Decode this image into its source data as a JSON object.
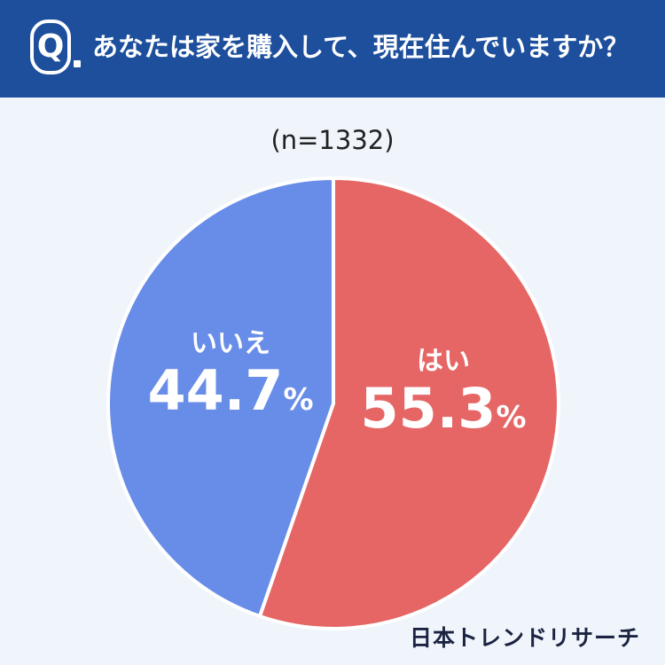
{
  "header": {
    "badge_letter": "Q",
    "question": "あなたは家を購入して、現在住んでいますか？"
  },
  "sample_size": "(n=1332)",
  "brand": "日本トレンドリサーチ",
  "colors": {
    "header": "#1d4f9c",
    "yes": "#e66666",
    "no": "#688de8",
    "background": "#f0f5fc"
  },
  "chart_data": {
    "type": "pie",
    "title": "あなたは家を購入して、現在住んでいますか？",
    "n": 1332,
    "unit": "%",
    "slices": [
      {
        "label": "はい",
        "value": 55.3,
        "value_text": "55.3",
        "color": "#e66666"
      },
      {
        "label": "いいえ",
        "value": 44.7,
        "value_text": "44.7",
        "color": "#688de8"
      }
    ]
  }
}
